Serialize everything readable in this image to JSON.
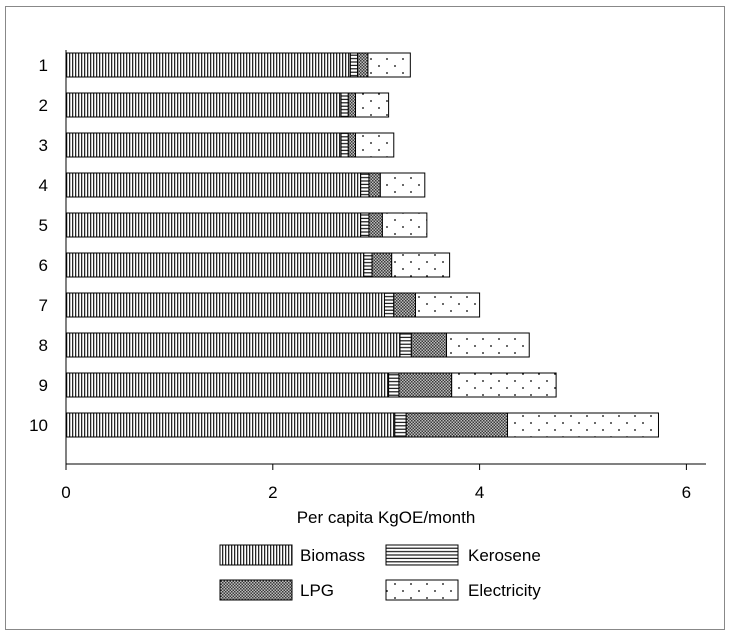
{
  "chart_data": {
    "type": "bar",
    "orientation": "horizontal",
    "stacked": true,
    "categories": [
      "1",
      "2",
      "3",
      "4",
      "5",
      "6",
      "7",
      "8",
      "9",
      "10"
    ],
    "series": [
      {
        "name": "Biomass",
        "pattern": "vertical-lines",
        "values": [
          2.75,
          2.66,
          2.66,
          2.85,
          2.85,
          2.88,
          3.08,
          3.23,
          3.12,
          3.18
        ]
      },
      {
        "name": "Kerosene",
        "pattern": "horizontal-lines",
        "values": [
          0.07,
          0.07,
          0.07,
          0.08,
          0.08,
          0.08,
          0.09,
          0.11,
          0.1,
          0.11
        ]
      },
      {
        "name": "LPG",
        "pattern": "crosshatch",
        "values": [
          0.1,
          0.07,
          0.07,
          0.11,
          0.13,
          0.19,
          0.21,
          0.34,
          0.51,
          0.98
        ]
      },
      {
        "name": "Electricity",
        "pattern": "dots",
        "values": [
          0.41,
          0.32,
          0.37,
          0.43,
          0.43,
          0.56,
          0.62,
          0.8,
          1.01,
          1.46
        ]
      }
    ],
    "xlabel": "Per capita KgOE/month",
    "ylabel": "",
    "xlim": [
      0,
      6.2
    ],
    "xticks": [
      "0",
      "2",
      "4",
      "6"
    ],
    "grid": false,
    "legend_position": "bottom"
  },
  "colors": {
    "bar_fill": "#ffffff",
    "bar_stroke": "#000000",
    "axis": "#000000",
    "frame": "#888888"
  }
}
